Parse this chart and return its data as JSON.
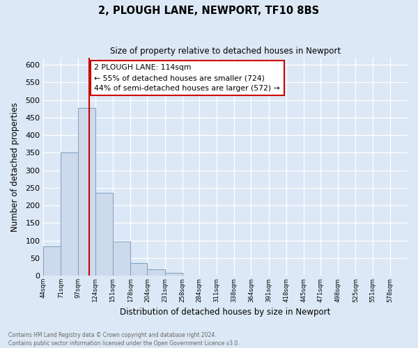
{
  "title": "2, PLOUGH LANE, NEWPORT, TF10 8BS",
  "subtitle": "Size of property relative to detached houses in Newport",
  "xlabel": "Distribution of detached houses by size in Newport",
  "ylabel": "Number of detached properties",
  "bar_edges": [
    44,
    71,
    97,
    124,
    151,
    178,
    204,
    231,
    258,
    284,
    311,
    338,
    364,
    391,
    418,
    445,
    471,
    498,
    525,
    551,
    578
  ],
  "bar_heights": [
    83,
    350,
    478,
    236,
    97,
    35,
    18,
    8,
    1,
    0,
    0,
    0,
    0,
    1,
    0,
    0,
    0,
    0,
    0,
    1
  ],
  "bar_color": "#cddaeb",
  "bar_edge_color": "#7a9fc0",
  "vline_x": 114,
  "vline_color": "#cc0000",
  "annotation_title": "2 PLOUGH LANE: 114sqm",
  "annotation_line1": "← 55% of detached houses are smaller (724)",
  "annotation_line2": "44% of semi-detached houses are larger (572) →",
  "annotation_box_color": "#ffffff",
  "annotation_box_edge": "#cc0000",
  "ylim": [
    0,
    620
  ],
  "xlim_left": 44,
  "xlim_right": 605,
  "footnote1": "Contains HM Land Registry data © Crown copyright and database right 2024.",
  "footnote2": "Contains public sector information licensed under the Open Government Licence v3.0.",
  "tick_labels": [
    "44sqm",
    "71sqm",
    "97sqm",
    "124sqm",
    "151sqm",
    "178sqm",
    "204sqm",
    "231sqm",
    "258sqm",
    "284sqm",
    "311sqm",
    "338sqm",
    "364sqm",
    "391sqm",
    "418sqm",
    "445sqm",
    "471sqm",
    "498sqm",
    "525sqm",
    "551sqm",
    "578sqm"
  ],
  "background_color": "#dce8f5",
  "grid_color": "#ffffff",
  "yticks": [
    0,
    50,
    100,
    150,
    200,
    250,
    300,
    350,
    400,
    450,
    500,
    550,
    600
  ]
}
